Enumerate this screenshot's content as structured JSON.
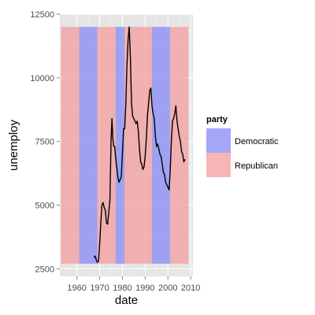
{
  "chart_data": {
    "type": "line",
    "xlabel": "date",
    "ylabel": "unemploy",
    "xlim": [
      1952.5,
      2011
    ],
    "ylim": [
      2200,
      12500
    ],
    "x_ticks": [
      1960,
      1970,
      1980,
      1990,
      2000,
      2010
    ],
    "x_tick_labels": [
      "1960",
      "1970",
      "1980",
      "1990",
      "2000",
      "2010"
    ],
    "y_ticks": [
      2500,
      5000,
      7500,
      10000,
      12500
    ],
    "y_tick_labels": [
      "2500",
      "5000",
      "7500",
      "10000",
      "12500"
    ],
    "grid": true,
    "legend": {
      "title": "party",
      "position": "right",
      "entries": [
        {
          "label": "Democratic",
          "color": "#8a8ef5"
        },
        {
          "label": "Republican",
          "color": "#f5a0a0"
        }
      ]
    },
    "bands": {
      "ymin": 2700,
      "ymax": 12000,
      "periods": [
        {
          "start": 1953,
          "end": 1961,
          "party": "Republican"
        },
        {
          "start": 1961,
          "end": 1969,
          "party": "Democratic"
        },
        {
          "start": 1969,
          "end": 1977,
          "party": "Republican"
        },
        {
          "start": 1977,
          "end": 1981,
          "party": "Democratic"
        },
        {
          "start": 1981,
          "end": 1993,
          "party": "Republican"
        },
        {
          "start": 1993,
          "end": 2001,
          "party": "Democratic"
        },
        {
          "start": 2001,
          "end": 2009,
          "party": "Republican"
        }
      ]
    },
    "series": [
      {
        "line_color": "#000000",
        "x": [
          1967.5,
          1968.0,
          1968.5,
          1969.0,
          1969.5,
          1970.0,
          1970.5,
          1971.0,
          1971.5,
          1972.0,
          1972.5,
          1973.0,
          1973.5,
          1974.0,
          1974.5,
          1975.0,
          1975.4,
          1975.8,
          1976.2,
          1976.6,
          1977.0,
          1977.5,
          1978.0,
          1978.5,
          1979.0,
          1979.5,
          1980.0,
          1980.5,
          1981.0,
          1981.5,
          1982.0,
          1982.5,
          1983.0,
          1983.5,
          1984.0,
          1984.5,
          1985.0,
          1985.5,
          1986.0,
          1986.5,
          1987.0,
          1987.5,
          1988.0,
          1988.5,
          1989.0,
          1989.5,
          1990.0,
          1990.5,
          1991.0,
          1991.5,
          1992.0,
          1992.5,
          1993.0,
          1993.5,
          1994.0,
          1994.5,
          1995.0,
          1995.5,
          1996.0,
          1996.5,
          1997.0,
          1997.5,
          1998.0,
          1998.5,
          1999.0,
          1999.5,
          2000.0,
          2000.5,
          2001.0,
          2001.5,
          2002.0,
          2002.5,
          2003.0,
          2003.5,
          2004.0,
          2004.5,
          2005.0,
          2005.5,
          2006.0,
          2006.5,
          2007.0,
          2007.5
        ],
        "y": [
          2950,
          3000,
          2850,
          2750,
          2800,
          3500,
          4300,
          5000,
          5100,
          4900,
          4800,
          4300,
          4250,
          4700,
          5200,
          7500,
          8400,
          7600,
          7300,
          7300,
          6900,
          6500,
          6100,
          5900,
          6000,
          6100,
          7000,
          8000,
          8000,
          9000,
          10500,
          11500,
          12000,
          10800,
          9000,
          8500,
          8400,
          8300,
          8200,
          8300,
          7900,
          7200,
          6700,
          6600,
          6400,
          6500,
          6900,
          7600,
          8500,
          9000,
          9500,
          9600,
          8900,
          8600,
          8400,
          7700,
          7300,
          7400,
          7200,
          7000,
          6900,
          6600,
          6300,
          6200,
          5900,
          5800,
          5700,
          5600,
          6300,
          7500,
          8300,
          8400,
          8600,
          8900,
          8300,
          8000,
          7700,
          7500,
          7100,
          7000,
          6700,
          6800
        ]
      }
    ]
  }
}
